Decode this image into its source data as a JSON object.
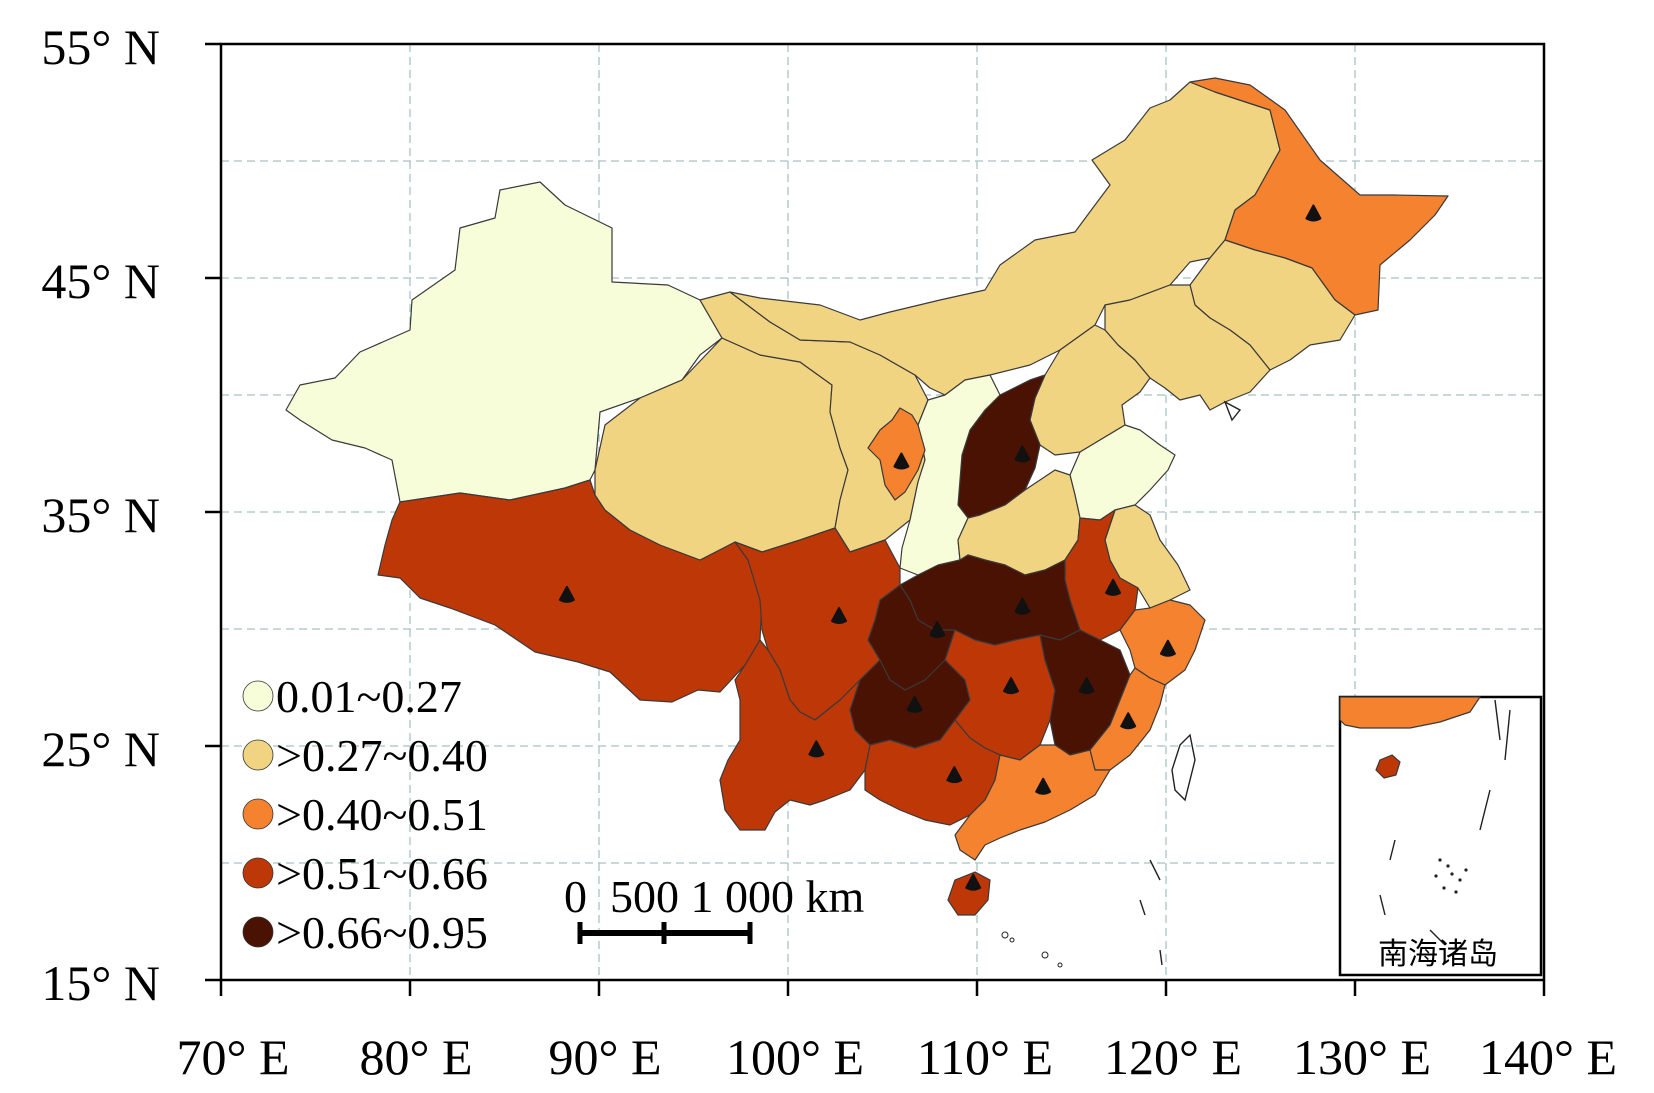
{
  "map": {
    "lat_labels": [
      "55° N",
      "45° N",
      "35° N",
      "25° N",
      "15° N"
    ],
    "lon_labels": [
      "70° E",
      "80° E",
      "90° E",
      "100° E",
      "110° E",
      "120° E",
      "130° E",
      "140° E"
    ],
    "extent": {
      "lon": [
        70,
        140
      ],
      "lat": [
        15,
        55
      ]
    }
  },
  "legend": {
    "items": [
      {
        "label": "0.01~0.27",
        "color": "#f7fcd9"
      },
      {
        "label": ">0.27~0.40",
        "color": "#f1d482"
      },
      {
        "label": ">0.40~0.51",
        "color": "#f5822f"
      },
      {
        "label": ">0.51~0.66",
        "color": "#bd3707"
      },
      {
        "label": ">0.66~0.95",
        "color": "#4a1203"
      }
    ]
  },
  "scale_bar": {
    "label": "0  500 1 000 km"
  },
  "inset": {
    "label": "南海诸岛"
  },
  "markers": [
    {
      "lon": 127.8,
      "lat": 47.8
    },
    {
      "lon": 106.0,
      "lat": 37.2
    },
    {
      "lon": 112.4,
      "lat": 37.5
    },
    {
      "lon": 88.3,
      "lat": 31.5
    },
    {
      "lon": 102.7,
      "lat": 30.6
    },
    {
      "lon": 117.2,
      "lat": 31.8
    },
    {
      "lon": 112.4,
      "lat": 31.0
    },
    {
      "lon": 107.9,
      "lat": 30.0
    },
    {
      "lon": 120.1,
      "lat": 29.2
    },
    {
      "lon": 111.8,
      "lat": 27.6
    },
    {
      "lon": 115.8,
      "lat": 27.6
    },
    {
      "lon": 106.7,
      "lat": 26.8
    },
    {
      "lon": 118.0,
      "lat": 26.1
    },
    {
      "lon": 101.5,
      "lat": 24.9
    },
    {
      "lon": 108.8,
      "lat": 23.8
    },
    {
      "lon": 113.5,
      "lat": 23.3
    },
    {
      "lon": 109.8,
      "lat": 19.2
    }
  ]
}
